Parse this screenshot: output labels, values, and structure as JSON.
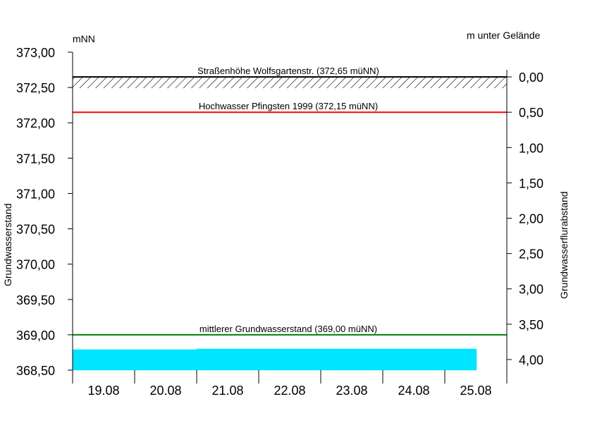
{
  "chart_data": {
    "type": "bar",
    "left_axis": {
      "unit": "mNN",
      "label": "Grundwasserstand",
      "range": [
        368.5,
        373.0
      ],
      "ticks": [
        "373,00",
        "372,50",
        "372,00",
        "371,50",
        "371,00",
        "370,50",
        "370,00",
        "369,50",
        "369,00",
        "368,50"
      ],
      "tick_values": [
        373.0,
        372.5,
        372.0,
        371.5,
        371.0,
        370.5,
        370.0,
        369.5,
        369.0,
        368.5
      ]
    },
    "right_axis": {
      "unit": "m unter Gelände",
      "label": "Grundwasserflurabstand",
      "reference_level": 372.65,
      "ticks": [
        "0,00",
        "0,50",
        "1,00",
        "1,50",
        "2,00",
        "2,50",
        "3,00",
        "3,50",
        "4,00"
      ],
      "tick_values": [
        0.0,
        0.5,
        1.0,
        1.5,
        2.0,
        2.5,
        3.0,
        3.5,
        4.0
      ]
    },
    "x_axis": {
      "categories": [
        "19.08",
        "20.08",
        "21.08",
        "22.08",
        "23.08",
        "24.08",
        "25.08"
      ]
    },
    "series": [
      {
        "color": "#00e5ff",
        "baseline": 368.5,
        "values": [
          368.79,
          368.79,
          368.8,
          368.8,
          368.8,
          368.8,
          368.8
        ]
      }
    ],
    "reference_lines": [
      {
        "label": "Straßenhöhe Wolfsgartenstr. (372,65 müNN)",
        "value": 372.65,
        "color": "#000000",
        "hatched": true
      },
      {
        "label": "Hochwasser Pfingsten 1999 (372,15 müNN)",
        "value": 372.15,
        "color": "#ff0000",
        "hatched": false
      },
      {
        "label": "mittlerer Grundwasserstand (369,00 müNN)",
        "value": 369.0,
        "color": "#008000",
        "hatched": false
      }
    ],
    "grid": false,
    "legend": "none"
  }
}
